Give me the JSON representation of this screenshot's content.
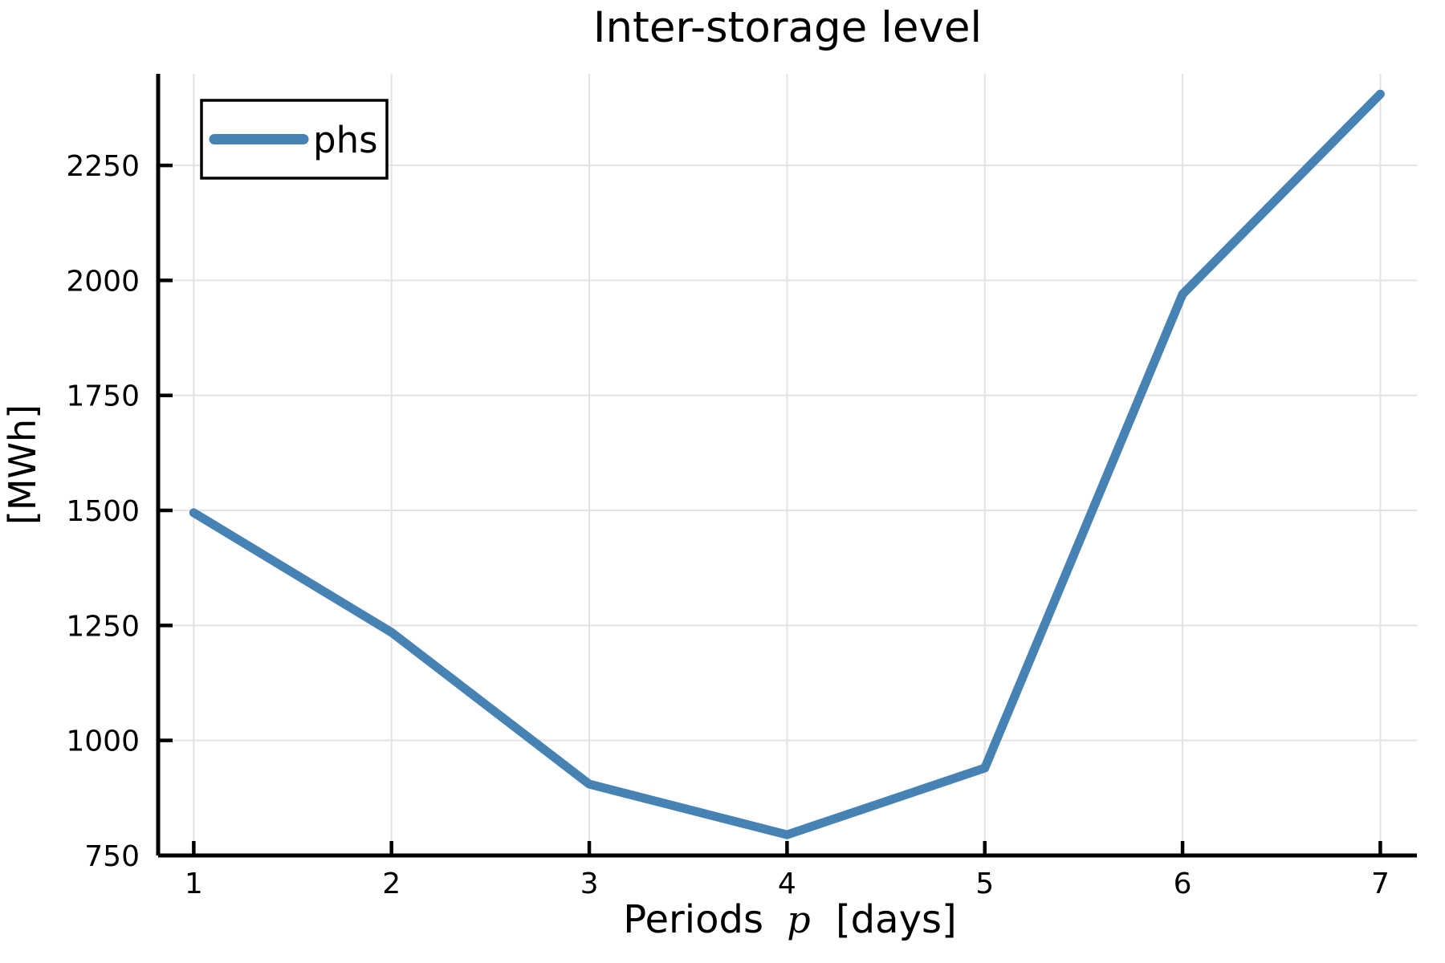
{
  "figure": {
    "background": "#FFFFFF"
  },
  "chart_data": {
    "type": "line",
    "title": "Inter-storage level",
    "xlabel": "Periods p [days]",
    "xlabel_parts": {
      "prefix": "Periods",
      "math_symbol": "p",
      "suffix": "[days]"
    },
    "ylabel": "[MWh]",
    "x": [
      1,
      2,
      3,
      4,
      5,
      6,
      7
    ],
    "xticks": [
      "1",
      "2",
      "3",
      "4",
      "5",
      "6",
      "7"
    ],
    "yticks": [
      750,
      1000,
      1250,
      1500,
      1750,
      2000,
      2250
    ],
    "xlim": [
      0.82,
      7.185
    ],
    "ylim": [
      750,
      2449
    ],
    "grid": true,
    "legend": {
      "position": "top-left",
      "entries": [
        {
          "label": "phs",
          "color": "#4682B4"
        }
      ]
    },
    "series": [
      {
        "name": "phs",
        "color": "#4682B4",
        "values": [
          1495,
          1235,
          905,
          795,
          940,
          1970,
          2405
        ]
      }
    ]
  },
  "style": {
    "series_color": "#4682B4",
    "grid_color": "#E3E3E3",
    "axis_color": "#000000",
    "text_color": "#000000",
    "background": "#FFFFFF"
  }
}
